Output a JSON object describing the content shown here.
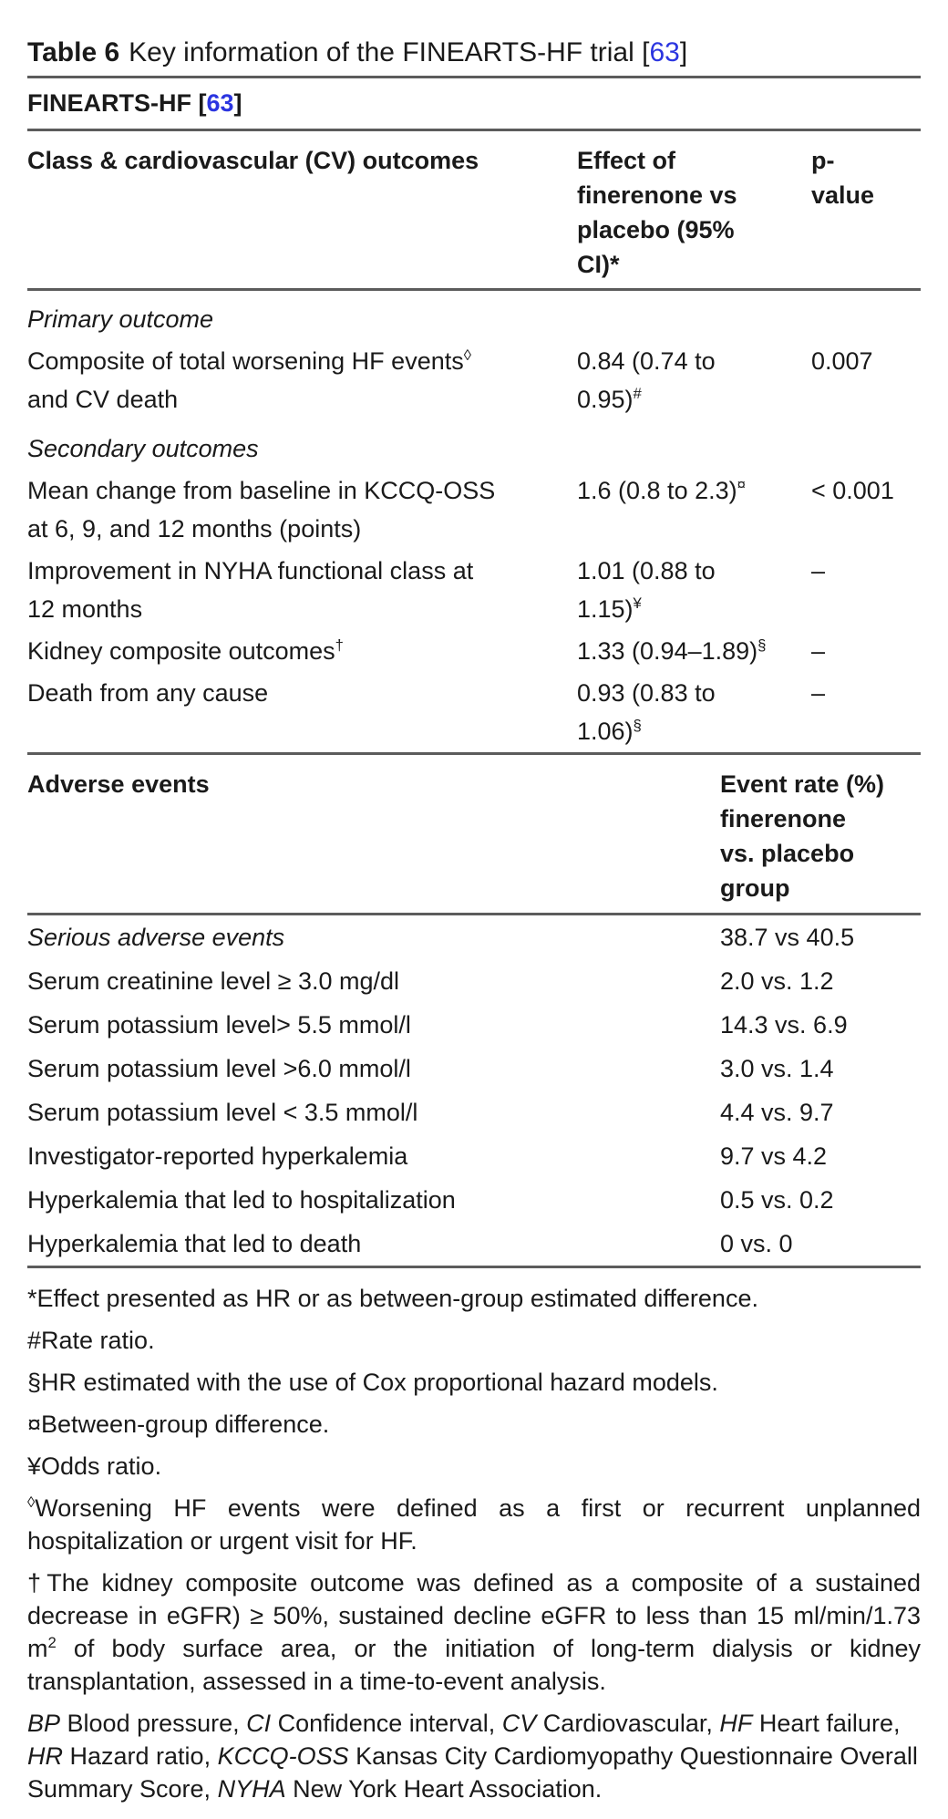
{
  "title": {
    "label": "Table 6",
    "text": "Key information of the FINEARTS-HF trial",
    "bracket_open": "[",
    "ref": "63",
    "bracket_close": "]"
  },
  "trial_header": {
    "name": "FINEARTS-HF ",
    "bracket_open": "[",
    "ref": "63",
    "bracket_close": "]"
  },
  "outcomes_table": {
    "col1_header": "Class & cardiovascular (CV) outcomes",
    "col2_header_lines": [
      "Effect of",
      "finerenone vs",
      "placebo (95%",
      "CI)*"
    ],
    "col3_header_lines": [
      "p-",
      "value"
    ],
    "section1": "Primary outcome",
    "section2": "Secondary outcomes",
    "rows": [
      {
        "label": "Composite of total worsening HF events",
        "label_sup": "◊",
        "label_rest": " and CV death",
        "effect": "0.84 (0.74 to 0.95)",
        "effect_sup": "#",
        "p": "0.007"
      },
      {
        "label": "Mean change from baseline in KCCQ-OSS at 6, 9, and 12 months (points)",
        "effect": "1.6 (0.8 to 2.3)",
        "effect_sup": "¤",
        "p": "< 0.001"
      },
      {
        "label": "Improvement in NYHA functional class at 12 months",
        "effect": "1.01 (0.88 to 1.15)",
        "effect_sup": "¥",
        "p": "–"
      },
      {
        "label": "Kidney composite outcomes",
        "label_sup": "†",
        "effect": "1.33 (0.94–1.89)",
        "effect_sup": "§",
        "p": "–"
      },
      {
        "label": "Death from any cause",
        "effect": "0.93 (0.83 to 1.06)",
        "effect_sup": "§",
        "p": "–"
      }
    ]
  },
  "adverse_table": {
    "col1_header": "Adverse events",
    "col2_header_lines": [
      "Event rate (%)",
      "finerenone",
      "vs. placebo",
      "group"
    ],
    "rows": [
      {
        "label": "Serious adverse events",
        "value": "38.7 vs 40.5"
      },
      {
        "label": "Serum creatinine level ≥ 3.0 mg/dl",
        "value": "2.0 vs. 1.2"
      },
      {
        "label": "Serum potassium level> 5.5 mmol/l",
        "value": "14.3 vs. 6.9"
      },
      {
        "label": "Serum potassium level >6.0 mmol/l",
        "value": "3.0 vs. 1.4"
      },
      {
        "label": "Serum potassium level < 3.5 mmol/l",
        "value": "4.4 vs. 9.7"
      },
      {
        "label": "Investigator-reported hyperkalemia",
        "value": "9.7 vs 4.2"
      },
      {
        "label": "Hyperkalemia that led to hospitalization",
        "value": "0.5 vs. 0.2"
      },
      {
        "label": "Hyperkalemia that led to death",
        "value": "0 vs. 0"
      }
    ]
  },
  "footnotes": {
    "effect": "*Effect presented as HR or as between-group estimated difference.",
    "rate_ratio": "#Rate ratio.",
    "hr_cox": "§HR estimated with the use of Cox proportional hazard models.",
    "between_group": "¤Between-group difference.",
    "odds_ratio": "¥Odds ratio.",
    "worsening": {
      "sup": "◊",
      "text": "Worsening HF events were defined as a first or recurrent unplanned hospitalization or urgent visit for HF."
    },
    "kidney": {
      "part1": "†The kidney composite outcome was defined as a composite of a sustained decrease in eGFR) ≥ 50%, sustained decline eGFR to less than 15 ml/min/1.73 m",
      "sup": "2",
      "part2": " of body surface area, or the initiation of long-term dialysis or kidney transplantation, assessed in a time-to-event analysis."
    }
  },
  "abbreviations": [
    {
      "term": "BP",
      "def": " Blood pressure, "
    },
    {
      "term": "CI",
      "def": " Confidence interval, "
    },
    {
      "term": "CV",
      "def": " Cardiovascular, "
    },
    {
      "term": "HF",
      "def": " Heart failure, "
    },
    {
      "term": "HR",
      "def": " Hazard ratio, "
    },
    {
      "term": "KCCQ-OSS",
      "def": " Kansas City Cardiomyopathy Questionnaire Overall Summary Score, "
    },
    {
      "term": "NYHA",
      "def": " New York Heart Association."
    }
  ],
  "colors": {
    "link_blue": "#2b35e0",
    "rule_gray": "#5c5c5c",
    "text": "#1a1a1a"
  }
}
